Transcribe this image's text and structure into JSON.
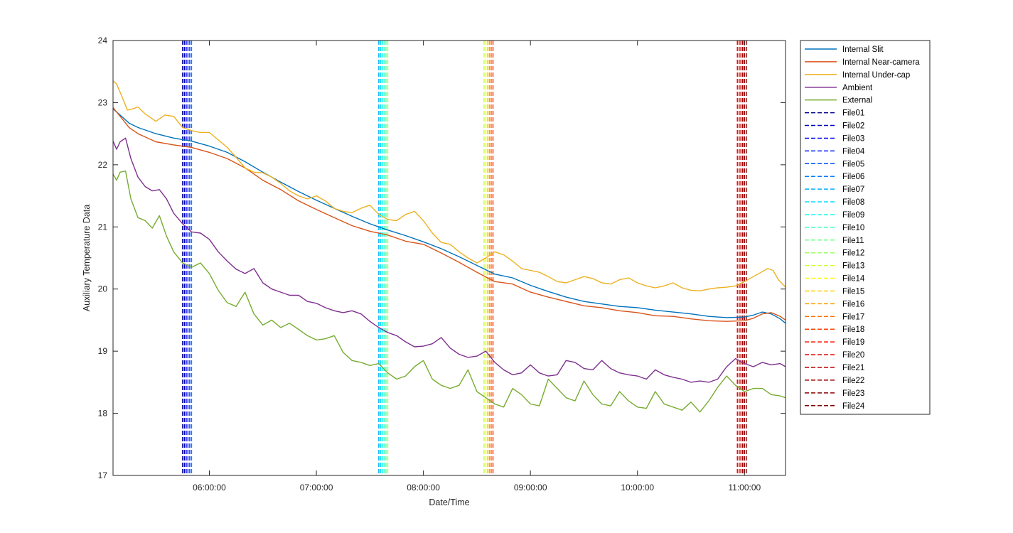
{
  "chart_data": {
    "type": "line",
    "title": "",
    "xlabel": "Date/Time",
    "ylabel": "Auxiliary Temperature Data",
    "ylim": [
      17,
      24
    ],
    "xlim": [
      "05:06:00",
      "11:23:00"
    ],
    "yticks": [
      "17",
      "18",
      "19",
      "20",
      "21",
      "22",
      "23",
      "24"
    ],
    "xticks": [
      "06:00:00",
      "07:00:00",
      "08:00:00",
      "09:00:00",
      "10:00:00",
      "11:00:00"
    ],
    "grid": false,
    "legend_position": "outside-right",
    "series": [
      {
        "name": "Internal Slit",
        "color": "#0072BD",
        "x": [
          "05:06:00",
          "05:10:00",
          "05:15:00",
          "05:20:00",
          "05:30:00",
          "05:40:00",
          "05:50:00",
          "06:00:00",
          "06:10:00",
          "06:20:00",
          "06:30:00",
          "06:40:00",
          "06:50:00",
          "07:00:00",
          "07:10:00",
          "07:20:00",
          "07:30:00",
          "07:40:00",
          "07:50:00",
          "08:00:00",
          "08:10:00",
          "08:20:00",
          "08:30:00",
          "08:40:00",
          "08:50:00",
          "09:00:00",
          "09:10:00",
          "09:20:00",
          "09:30:00",
          "09:40:00",
          "09:50:00",
          "10:00:00",
          "10:10:00",
          "10:20:00",
          "10:30:00",
          "10:40:00",
          "10:50:00",
          "11:00:00",
          "11:05:00",
          "11:10:00",
          "11:15:00",
          "11:20:00",
          "11:23:00"
        ],
        "values": [
          22.9,
          22.8,
          22.67,
          22.6,
          22.5,
          22.43,
          22.38,
          22.3,
          22.2,
          22.05,
          21.88,
          21.72,
          21.57,
          21.43,
          21.3,
          21.17,
          21.05,
          20.95,
          20.86,
          20.76,
          20.65,
          20.52,
          20.38,
          20.24,
          20.18,
          20.06,
          19.96,
          19.87,
          19.8,
          19.76,
          19.72,
          19.7,
          19.66,
          19.63,
          19.6,
          19.56,
          19.54,
          19.55,
          19.58,
          19.63,
          19.6,
          19.52,
          19.45
        ]
      },
      {
        "name": "Internal Near-camera",
        "color": "#D95319",
        "x": [
          "05:06:00",
          "05:10:00",
          "05:15:00",
          "05:20:00",
          "05:30:00",
          "05:40:00",
          "05:50:00",
          "06:00:00",
          "06:10:00",
          "06:20:00",
          "06:30:00",
          "06:40:00",
          "06:50:00",
          "07:00:00",
          "07:10:00",
          "07:20:00",
          "07:30:00",
          "07:40:00",
          "07:50:00",
          "08:00:00",
          "08:10:00",
          "08:20:00",
          "08:30:00",
          "08:40:00",
          "08:50:00",
          "09:00:00",
          "09:10:00",
          "09:20:00",
          "09:30:00",
          "09:40:00",
          "09:50:00",
          "10:00:00",
          "10:10:00",
          "10:20:00",
          "10:30:00",
          "10:40:00",
          "10:50:00",
          "11:00:00",
          "11:05:00",
          "11:10:00",
          "11:15:00",
          "11:20:00",
          "11:23:00"
        ],
        "values": [
          22.92,
          22.78,
          22.6,
          22.5,
          22.37,
          22.32,
          22.28,
          22.2,
          22.1,
          21.95,
          21.75,
          21.6,
          21.42,
          21.28,
          21.15,
          21.02,
          20.93,
          20.87,
          20.77,
          20.72,
          20.58,
          20.43,
          20.27,
          20.12,
          20.08,
          19.95,
          19.87,
          19.8,
          19.73,
          19.7,
          19.65,
          19.62,
          19.57,
          19.56,
          19.52,
          19.49,
          19.48,
          19.49,
          19.53,
          19.6,
          19.62,
          19.56,
          19.5
        ]
      },
      {
        "name": "Internal Under-cap",
        "color": "#EDB120",
        "x": [
          "05:06:00",
          "05:08:00",
          "05:11:00",
          "05:14:00",
          "05:17:00",
          "05:20:00",
          "05:24:00",
          "05:30:00",
          "05:35:00",
          "05:40:00",
          "05:45:00",
          "05:50:00",
          "05:55:00",
          "06:00:00",
          "06:10:00",
          "06:15:00",
          "06:20:00",
          "06:25:00",
          "06:30:00",
          "06:35:00",
          "06:40:00",
          "06:45:00",
          "06:50:00",
          "06:55:00",
          "07:00:00",
          "07:05:00",
          "07:10:00",
          "07:15:00",
          "07:20:00",
          "07:25:00",
          "07:30:00",
          "07:35:00",
          "07:40:00",
          "07:45:00",
          "07:50:00",
          "07:55:00",
          "08:00:00",
          "08:05:00",
          "08:10:00",
          "08:15:00",
          "08:20:00",
          "08:25:00",
          "08:30:00",
          "08:35:00",
          "08:40:00",
          "08:45:00",
          "08:50:00",
          "08:55:00",
          "09:00:00",
          "09:05:00",
          "09:10:00",
          "09:15:00",
          "09:20:00",
          "09:25:00",
          "09:30:00",
          "09:35:00",
          "09:40:00",
          "09:45:00",
          "09:50:00",
          "09:55:00",
          "10:00:00",
          "10:05:00",
          "10:10:00",
          "10:15:00",
          "10:20:00",
          "10:25:00",
          "10:30:00",
          "10:35:00",
          "10:40:00",
          "10:45:00",
          "10:50:00",
          "10:55:00",
          "11:00:00",
          "11:05:00",
          "11:10:00",
          "11:13:00",
          "11:16:00",
          "11:19:00",
          "11:23:00"
        ],
        "values": [
          23.35,
          23.3,
          23.1,
          22.88,
          22.9,
          22.93,
          22.82,
          22.7,
          22.8,
          22.78,
          22.6,
          22.55,
          22.52,
          22.52,
          22.28,
          22.12,
          21.95,
          21.88,
          21.87,
          21.8,
          21.7,
          21.58,
          21.5,
          21.45,
          21.5,
          21.42,
          21.3,
          21.25,
          21.23,
          21.3,
          21.35,
          21.2,
          21.12,
          21.1,
          21.2,
          21.25,
          21.1,
          20.9,
          20.75,
          20.72,
          20.6,
          20.5,
          20.42,
          20.5,
          20.6,
          20.55,
          20.45,
          20.33,
          20.3,
          20.27,
          20.2,
          20.12,
          20.1,
          20.15,
          20.2,
          20.17,
          20.1,
          20.08,
          20.15,
          20.18,
          20.1,
          20.05,
          20.02,
          20.05,
          20.1,
          20.02,
          19.98,
          19.97,
          20.0,
          20.02,
          20.03,
          20.05,
          20.12,
          20.2,
          20.28,
          20.33,
          20.3,
          20.15,
          20.03
        ]
      },
      {
        "name": "Ambient",
        "color": "#7E2F8E",
        "x": [
          "05:06:00",
          "05:08:00",
          "05:10:00",
          "05:13:00",
          "05:16:00",
          "05:20:00",
          "05:24:00",
          "05:28:00",
          "05:32:00",
          "05:36:00",
          "05:40:00",
          "05:45:00",
          "05:50:00",
          "05:55:00",
          "06:00:00",
          "06:05:00",
          "06:10:00",
          "06:15:00",
          "06:20:00",
          "06:25:00",
          "06:30:00",
          "06:35:00",
          "06:40:00",
          "06:45:00",
          "06:50:00",
          "06:55:00",
          "07:00:00",
          "07:05:00",
          "07:10:00",
          "07:15:00",
          "07:20:00",
          "07:25:00",
          "07:30:00",
          "07:35:00",
          "07:40:00",
          "07:45:00",
          "07:50:00",
          "07:55:00",
          "08:00:00",
          "08:05:00",
          "08:10:00",
          "08:15:00",
          "08:20:00",
          "08:25:00",
          "08:30:00",
          "08:35:00",
          "08:40:00",
          "08:45:00",
          "08:50:00",
          "08:55:00",
          "09:00:00",
          "09:05:00",
          "09:10:00",
          "09:15:00",
          "09:20:00",
          "09:25:00",
          "09:30:00",
          "09:35:00",
          "09:40:00",
          "09:45:00",
          "09:50:00",
          "09:55:00",
          "10:00:00",
          "10:05:00",
          "10:10:00",
          "10:15:00",
          "10:20:00",
          "10:25:00",
          "10:30:00",
          "10:35:00",
          "10:40:00",
          "10:45:00",
          "10:50:00",
          "10:55:00",
          "11:00:00",
          "11:05:00",
          "11:10:00",
          "11:15:00",
          "11:20:00",
          "11:23:00"
        ],
        "values": [
          22.38,
          22.25,
          22.37,
          22.43,
          22.1,
          21.8,
          21.65,
          21.58,
          21.6,
          21.45,
          21.22,
          21.05,
          20.92,
          20.9,
          20.8,
          20.6,
          20.45,
          20.32,
          20.25,
          20.33,
          20.1,
          20.0,
          19.95,
          19.9,
          19.9,
          19.8,
          19.77,
          19.7,
          19.65,
          19.62,
          19.65,
          19.6,
          19.48,
          19.38,
          19.3,
          19.25,
          19.15,
          19.07,
          19.08,
          19.12,
          19.22,
          19.05,
          18.95,
          18.9,
          18.92,
          19.0,
          18.82,
          18.7,
          18.62,
          18.65,
          18.78,
          18.65,
          18.6,
          18.62,
          18.85,
          18.82,
          18.72,
          18.7,
          18.85,
          18.72,
          18.65,
          18.62,
          18.6,
          18.55,
          18.7,
          18.62,
          18.58,
          18.55,
          18.5,
          18.52,
          18.5,
          18.55,
          18.75,
          18.88,
          18.8,
          18.75,
          18.82,
          18.78,
          18.8,
          18.75
        ]
      },
      {
        "name": "External",
        "color": "#77AC30",
        "x": [
          "05:06:00",
          "05:08:00",
          "05:10:00",
          "05:13:00",
          "05:16:00",
          "05:20:00",
          "05:24:00",
          "05:28:00",
          "05:32:00",
          "05:36:00",
          "05:40:00",
          "05:45:00",
          "05:50:00",
          "05:55:00",
          "06:00:00",
          "06:05:00",
          "06:10:00",
          "06:15:00",
          "06:20:00",
          "06:25:00",
          "06:30:00",
          "06:35:00",
          "06:40:00",
          "06:45:00",
          "06:50:00",
          "06:55:00",
          "07:00:00",
          "07:05:00",
          "07:10:00",
          "07:15:00",
          "07:20:00",
          "07:25:00",
          "07:30:00",
          "07:35:00",
          "07:40:00",
          "07:45:00",
          "07:50:00",
          "07:55:00",
          "08:00:00",
          "08:05:00",
          "08:10:00",
          "08:15:00",
          "08:20:00",
          "08:25:00",
          "08:30:00",
          "08:35:00",
          "08:40:00",
          "08:45:00",
          "08:50:00",
          "08:55:00",
          "09:00:00",
          "09:05:00",
          "09:10:00",
          "09:15:00",
          "09:20:00",
          "09:25:00",
          "09:30:00",
          "09:35:00",
          "09:40:00",
          "09:45:00",
          "09:50:00",
          "09:55:00",
          "10:00:00",
          "10:05:00",
          "10:10:00",
          "10:15:00",
          "10:20:00",
          "10:25:00",
          "10:30:00",
          "10:35:00",
          "10:40:00",
          "10:45:00",
          "10:50:00",
          "10:55:00",
          "11:00:00",
          "11:05:00",
          "11:10:00",
          "11:15:00",
          "11:20:00",
          "11:23:00"
        ],
        "values": [
          21.85,
          21.75,
          21.88,
          21.9,
          21.45,
          21.15,
          21.1,
          20.98,
          21.18,
          20.85,
          20.6,
          20.42,
          20.35,
          20.42,
          20.25,
          19.98,
          19.78,
          19.72,
          19.95,
          19.6,
          19.42,
          19.5,
          19.38,
          19.45,
          19.35,
          19.25,
          19.18,
          19.2,
          19.25,
          18.98,
          18.85,
          18.82,
          18.77,
          18.8,
          18.65,
          18.55,
          18.6,
          18.75,
          18.85,
          18.55,
          18.45,
          18.4,
          18.45,
          18.7,
          18.35,
          18.25,
          18.15,
          18.1,
          18.4,
          18.3,
          18.15,
          18.12,
          18.55,
          18.4,
          18.25,
          18.2,
          18.52,
          18.3,
          18.15,
          18.12,
          18.35,
          18.2,
          18.1,
          18.08,
          18.35,
          18.15,
          18.1,
          18.05,
          18.18,
          18.02,
          18.2,
          18.42,
          18.6,
          18.45,
          18.35,
          18.4,
          18.4,
          18.3,
          18.28,
          18.25
        ]
      }
    ],
    "vlines": [
      {
        "name": "File01",
        "color": "#00008F",
        "x": "05:45:00"
      },
      {
        "name": "File02",
        "color": "#0000BF",
        "x": "05:46:00"
      },
      {
        "name": "File03",
        "color": "#0000EF",
        "x": "05:47:00"
      },
      {
        "name": "File04",
        "color": "#0020FF",
        "x": "05:48:00"
      },
      {
        "name": "File05",
        "color": "#0050FF",
        "x": "05:49:00"
      },
      {
        "name": "File06",
        "color": "#0080FF",
        "x": "05:50:00"
      },
      {
        "name": "File07",
        "color": "#00B0FF",
        "x": "07:35:00"
      },
      {
        "name": "File08",
        "color": "#00DFFF",
        "x": "07:36:00"
      },
      {
        "name": "File09",
        "color": "#10FFEF",
        "x": "07:37:00"
      },
      {
        "name": "File10",
        "color": "#40FFBF",
        "x": "07:38:00"
      },
      {
        "name": "File11",
        "color": "#70FF8F",
        "x": "07:39:00"
      },
      {
        "name": "File12",
        "color": "#9FFF60",
        "x": "07:40:00"
      },
      {
        "name": "File13",
        "color": "#CFFF30",
        "x": "08:34:00"
      },
      {
        "name": "File14",
        "color": "#FFFF00",
        "x": "08:35:00"
      },
      {
        "name": "File15",
        "color": "#FFD000",
        "x": "08:36:00"
      },
      {
        "name": "File16",
        "color": "#FFA000",
        "x": "08:37:00"
      },
      {
        "name": "File17",
        "color": "#FF7000",
        "x": "08:38:00"
      },
      {
        "name": "File18",
        "color": "#FF4000",
        "x": "08:39:00"
      },
      {
        "name": "File19",
        "color": "#FF1000",
        "x": "10:56:00"
      },
      {
        "name": "File20",
        "color": "#DF0000",
        "x": "10:57:00"
      },
      {
        "name": "File21",
        "color": "#BF0000",
        "x": "10:58:00"
      },
      {
        "name": "File22",
        "color": "#A00000",
        "x": "10:59:00"
      },
      {
        "name": "File23",
        "color": "#8F0000",
        "x": "11:00:00"
      },
      {
        "name": "File24",
        "color": "#800000",
        "x": "11:01:00"
      }
    ]
  }
}
